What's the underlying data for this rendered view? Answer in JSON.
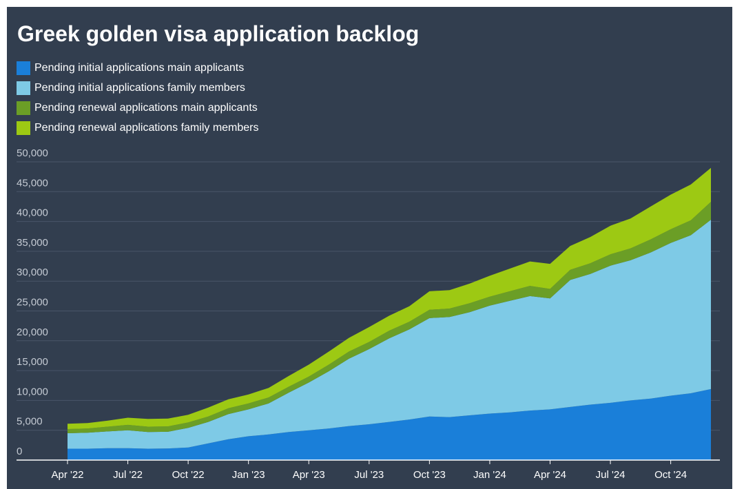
{
  "chart_data": {
    "type": "area",
    "stacked": true,
    "title": "Greek golden visa application backlog",
    "xlabel": "",
    "ylabel": "",
    "x": [
      "2022-04",
      "2022-05",
      "2022-06",
      "2022-07",
      "2022-08",
      "2022-09",
      "2022-10",
      "2022-11",
      "2022-12",
      "2023-01",
      "2023-02",
      "2023-03",
      "2023-04",
      "2023-05",
      "2023-06",
      "2023-07",
      "2023-08",
      "2023-09",
      "2023-10",
      "2023-11",
      "2023-12",
      "2024-01",
      "2024-02",
      "2024-03",
      "2024-04",
      "2024-05",
      "2024-06",
      "2024-07",
      "2024-08",
      "2024-09",
      "2024-10",
      "2024-11",
      "2024-12"
    ],
    "x_tick_labels": [
      "Apr '22",
      "Jul '22",
      "Oct '22",
      "Jan '23",
      "Apr '23",
      "Jul '23",
      "Oct '23",
      "Jan '24",
      "Apr '24",
      "Jul '24",
      "Oct '24"
    ],
    "y_tick_labels": [
      "0",
      "5,000",
      "10,000",
      "15,000",
      "20,000",
      "25,000",
      "30,000",
      "35,000",
      "40,000",
      "45,000",
      "50,000"
    ],
    "ylim": [
      0,
      50000
    ],
    "grid": true,
    "legend_position": "top-left",
    "series": [
      {
        "name": "Pending initial applications main applicants",
        "color": "#1a7fd9",
        "values": [
          1900,
          1900,
          2000,
          2000,
          1900,
          1950,
          2100,
          2800,
          3500,
          4000,
          4300,
          4700,
          5000,
          5300,
          5700,
          6000,
          6400,
          6800,
          7300,
          7200,
          7500,
          7800,
          8000,
          8300,
          8500,
          8900,
          9300,
          9600,
          10000,
          10300,
          10800,
          11200,
          11900
        ]
      },
      {
        "name": "Pending initial applications family members",
        "color": "#7ecae6",
        "values": [
          2600,
          2700,
          2800,
          3000,
          2800,
          2800,
          3300,
          3600,
          4200,
          4500,
          5200,
          6600,
          8000,
          9600,
          11300,
          12600,
          14000,
          15100,
          16500,
          16800,
          17300,
          18100,
          18700,
          19200,
          18600,
          21300,
          21900,
          23000,
          23500,
          24500,
          25600,
          26500,
          28400
        ]
      },
      {
        "name": "Pending renewal applications main applicants",
        "color": "#6b9e26",
        "values": [
          700,
          700,
          800,
          900,
          900,
          900,
          900,
          900,
          1000,
          1000,
          1000,
          1000,
          1000,
          1100,
          1200,
          1200,
          1300,
          1300,
          1400,
          1400,
          1500,
          1500,
          1600,
          1700,
          1600,
          1700,
          1800,
          1900,
          2000,
          2200,
          2300,
          2500,
          3000
        ]
      },
      {
        "name": "Pending renewal applications family members",
        "color": "#9dc913",
        "values": [
          900,
          900,
          1000,
          1200,
          1300,
          1300,
          1300,
          1500,
          1500,
          1500,
          1600,
          1800,
          2000,
          2200,
          2300,
          2500,
          2500,
          2600,
          3100,
          3100,
          3300,
          3500,
          3800,
          4100,
          4200,
          4000,
          4400,
          4800,
          5000,
          5500,
          5800,
          6000,
          5700
        ]
      }
    ]
  }
}
